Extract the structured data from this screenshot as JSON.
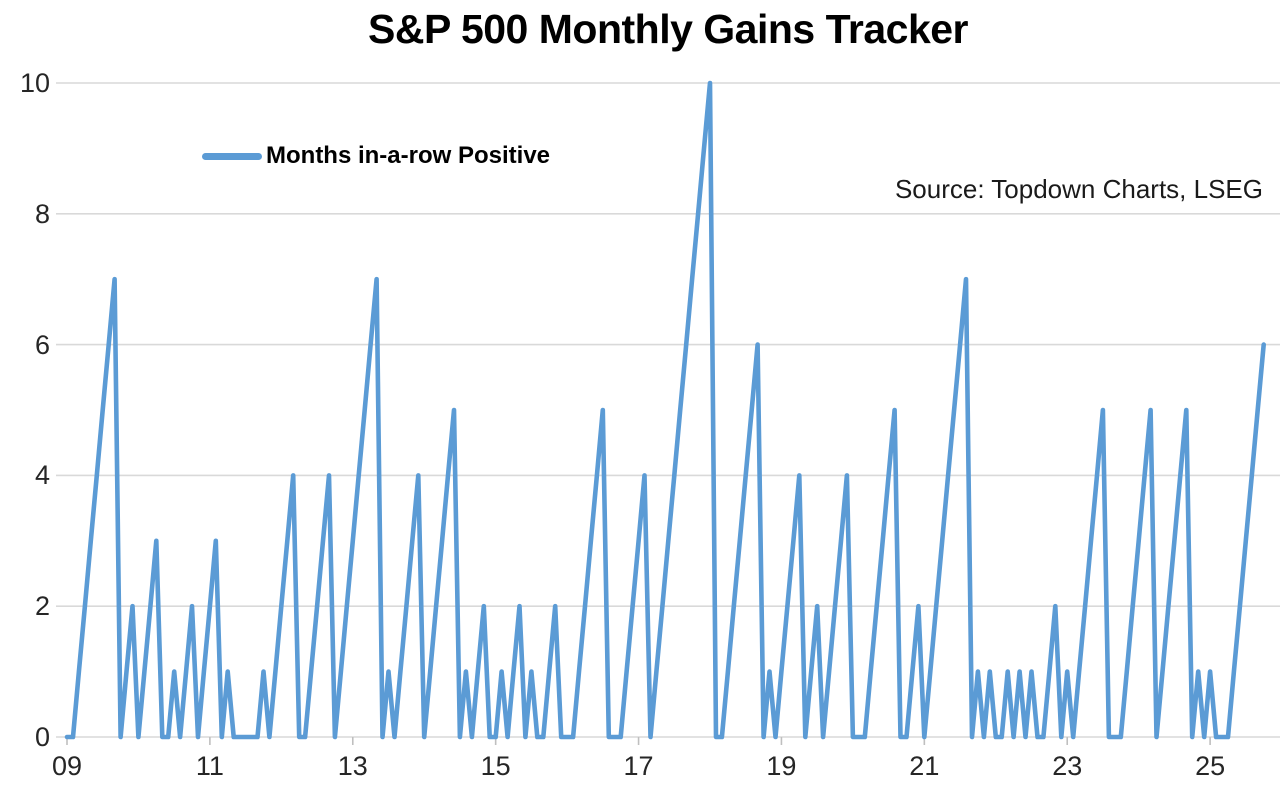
{
  "chart_data": {
    "type": "line",
    "title": "S&P 500 Monthly Gains Tracker",
    "legend": "Months in-a-row Positive",
    "source_note": "Source: Topdown Charts, LSEG",
    "x_start_month": "2009-01",
    "x_end_month": "2025-10",
    "x_tick_labels": [
      "09",
      "11",
      "13",
      "15",
      "17",
      "19",
      "21",
      "23",
      "25"
    ],
    "y_tick_labels": [
      "0",
      "2",
      "4",
      "6",
      "8",
      "10"
    ],
    "ylim": [
      0,
      10
    ],
    "grid": "horizontal-only",
    "legend_position": "top-left-inside",
    "colors": {
      "line": "#5B9BD5",
      "grid": "#D9D9D9",
      "tick": "#BFBFBF",
      "text": "#262626",
      "title": "#000000"
    },
    "series_name": "Months in-a-row Positive",
    "values": [
      0,
      0,
      1,
      2,
      3,
      4,
      5,
      6,
      7,
      0,
      1,
      2,
      0,
      1,
      2,
      3,
      0,
      0,
      1,
      0,
      1,
      2,
      0,
      1,
      2,
      3,
      0,
      1,
      0,
      0,
      0,
      0,
      0,
      1,
      0,
      1,
      2,
      3,
      4,
      0,
      0,
      1,
      2,
      3,
      4,
      0,
      1,
      2,
      3,
      4,
      5,
      6,
      7,
      0,
      1,
      0,
      1,
      2,
      3,
      4,
      0,
      1,
      2,
      3,
      4,
      5,
      0,
      1,
      0,
      1,
      2,
      0,
      0,
      1,
      0,
      1,
      2,
      0,
      1,
      0,
      0,
      1,
      2,
      0,
      0,
      0,
      1,
      2,
      3,
      4,
      5,
      0,
      0,
      0,
      1,
      2,
      3,
      4,
      0,
      1,
      2,
      3,
      4,
      5,
      6,
      7,
      8,
      9,
      10,
      0,
      0,
      1,
      2,
      3,
      4,
      5,
      6,
      0,
      1,
      0,
      1,
      2,
      3,
      4,
      0,
      1,
      2,
      0,
      1,
      2,
      3,
      4,
      0,
      0,
      0,
      1,
      2,
      3,
      4,
      5,
      0,
      0,
      1,
      2,
      0,
      1,
      2,
      3,
      4,
      5,
      6,
      7,
      0,
      1,
      0,
      1,
      0,
      0,
      1,
      0,
      1,
      0,
      1,
      0,
      0,
      1,
      2,
      0,
      1,
      0,
      1,
      2,
      3,
      4,
      5,
      0,
      0,
      0,
      1,
      2,
      3,
      4,
      5,
      0,
      1,
      2,
      3,
      4,
      5,
      0,
      1,
      0,
      1,
      0,
      0,
      0,
      1,
      2,
      3,
      4,
      5,
      6
    ]
  }
}
